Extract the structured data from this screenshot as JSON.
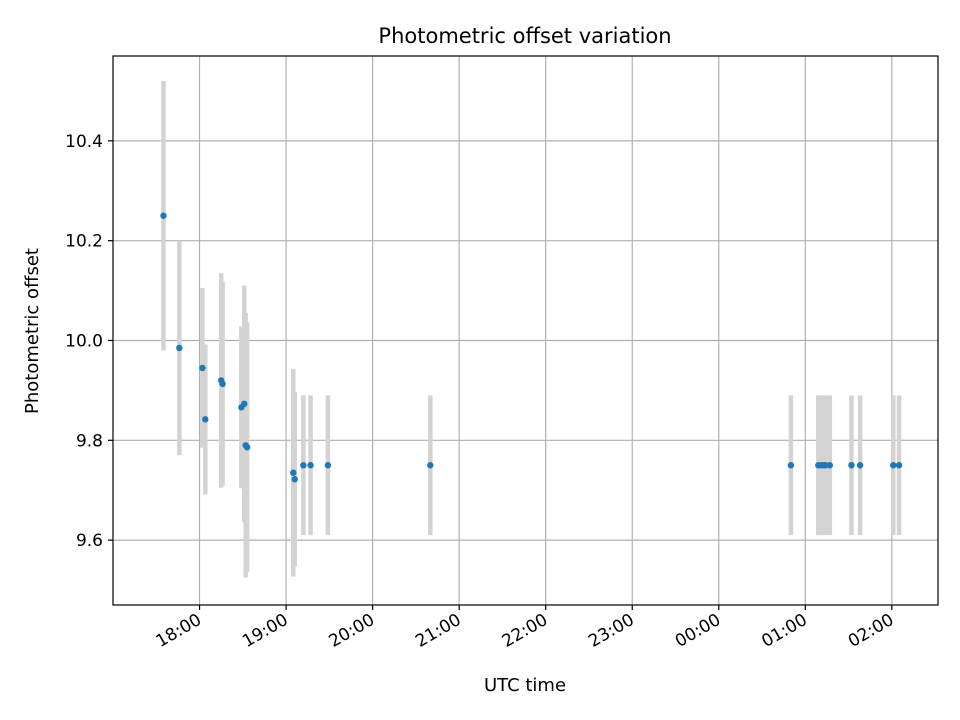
{
  "chart_data": {
    "type": "scatter",
    "title": "Photometric offset variation",
    "xlabel": "UTC time",
    "ylabel": "Photometric offset",
    "xlim": [
      "17:00",
      "02:32"
    ],
    "ylim": [
      9.47,
      10.57
    ],
    "x_ticks": [
      "18:00",
      "19:00",
      "20:00",
      "21:00",
      "22:00",
      "23:00",
      "00:00",
      "01:00",
      "02:00"
    ],
    "y_ticks": [
      "9.6",
      "9.8",
      "10.0",
      "10.2",
      "10.4"
    ],
    "y_tick_values": [
      9.6,
      9.8,
      10.0,
      10.2,
      10.4
    ],
    "grid": true,
    "colors": {
      "marker": "#1f77b4",
      "errorbar": "#d3d3d3",
      "grid": "#b0b0b0"
    },
    "series": [
      {
        "points": [
          {
            "x": "17:35",
            "y": 10.25,
            "yerr": 0.27
          },
          {
            "x": "17:46",
            "y": 9.985,
            "yerr": 0.215
          },
          {
            "x": "18:02",
            "y": 9.945,
            "yerr": 0.16
          },
          {
            "x": "18:04",
            "y": 9.842,
            "yerr": 0.15
          },
          {
            "x": "18:15",
            "y": 9.92,
            "yerr": 0.215
          },
          {
            "x": "18:16",
            "y": 9.913,
            "yerr": 0.205
          },
          {
            "x": "18:29",
            "y": 9.866,
            "yerr": 0.162
          },
          {
            "x": "18:31",
            "y": 9.873,
            "yerr": 0.237
          },
          {
            "x": "18:32",
            "y": 9.79,
            "yerr": 0.265
          },
          {
            "x": "18:33",
            "y": 9.786,
            "yerr": 0.25
          },
          {
            "x": "19:05",
            "y": 9.735,
            "yerr": 0.208
          },
          {
            "x": "19:06",
            "y": 9.722,
            "yerr": 0.175
          },
          {
            "x": "19:12",
            "y": 9.75,
            "yerr": 0.14
          },
          {
            "x": "19:17",
            "y": 9.75,
            "yerr": 0.14
          },
          {
            "x": "19:29",
            "y": 9.75,
            "yerr": 0.14
          },
          {
            "x": "20:40",
            "y": 9.75,
            "yerr": 0.14
          },
          {
            "x": "00:50",
            "y": 9.75,
            "yerr": 0.14
          },
          {
            "x": "01:09",
            "y": 9.75,
            "yerr": 0.14
          },
          {
            "x": "01:11",
            "y": 9.75,
            "yerr": 0.14
          },
          {
            "x": "01:13",
            "y": 9.75,
            "yerr": 0.14
          },
          {
            "x": "01:14",
            "y": 9.75,
            "yerr": 0.14
          },
          {
            "x": "01:17",
            "y": 9.75,
            "yerr": 0.14
          },
          {
            "x": "01:32",
            "y": 9.75,
            "yerr": 0.14
          },
          {
            "x": "01:38",
            "y": 9.75,
            "yerr": 0.14
          },
          {
            "x": "02:01",
            "y": 9.75,
            "yerr": 0.14
          },
          {
            "x": "02:05",
            "y": 9.75,
            "yerr": 0.14
          }
        ]
      }
    ]
  }
}
